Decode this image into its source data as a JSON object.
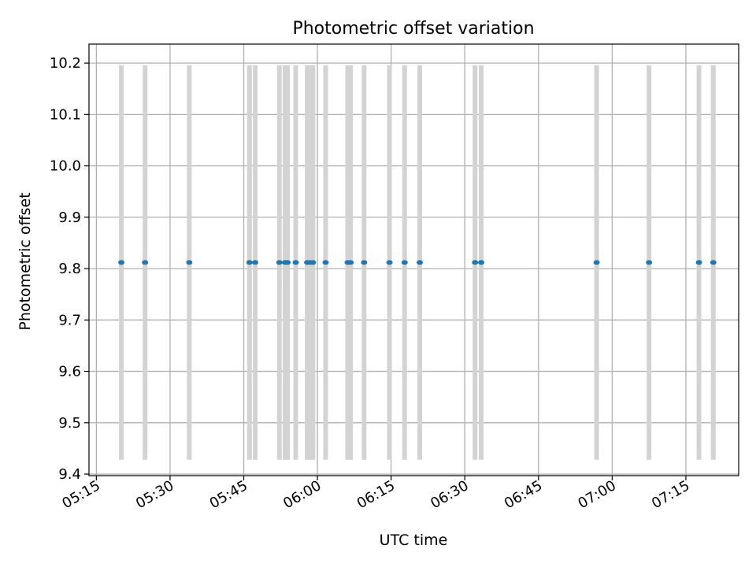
{
  "chart_data": {
    "type": "scatter",
    "title": "Photometric offset variation",
    "xlabel": "UTC time",
    "ylabel": "Photometric offset",
    "xlim": [
      "05:13:30",
      "07:25:45"
    ],
    "ylim": [
      9.397,
      10.237
    ],
    "x_ticks": [
      "05:15",
      "05:30",
      "05:45",
      "06:00",
      "06:15",
      "06:30",
      "06:45",
      "07:00",
      "07:15"
    ],
    "y_ticks": [
      "9.4",
      "9.5",
      "9.6",
      "9.7",
      "9.8",
      "9.9",
      "10.0",
      "10.1",
      "10.2"
    ],
    "grid": true,
    "point_color": "#1f77b4",
    "error_bar_color": "#d3d3d3",
    "points": [
      {
        "x": "05:20:05",
        "y": 9.812,
        "ylow": 9.428,
        "yhigh": 10.196
      },
      {
        "x": "05:24:55",
        "y": 9.812,
        "ylow": 9.428,
        "yhigh": 10.196
      },
      {
        "x": "05:33:55",
        "y": 9.812,
        "ylow": 9.428,
        "yhigh": 10.196
      },
      {
        "x": "05:46:10",
        "y": 9.812,
        "ylow": 9.428,
        "yhigh": 10.196
      },
      {
        "x": "05:47:20",
        "y": 9.812,
        "ylow": 9.428,
        "yhigh": 10.196
      },
      {
        "x": "05:52:15",
        "y": 9.812,
        "ylow": 9.428,
        "yhigh": 10.196
      },
      {
        "x": "05:53:25",
        "y": 9.812,
        "ylow": 9.428,
        "yhigh": 10.196
      },
      {
        "x": "05:53:55",
        "y": 9.812,
        "ylow": 9.428,
        "yhigh": 10.196
      },
      {
        "x": "05:55:35",
        "y": 9.812,
        "ylow": 9.428,
        "yhigh": 10.196
      },
      {
        "x": "05:57:55",
        "y": 9.812,
        "ylow": 9.428,
        "yhigh": 10.196
      },
      {
        "x": "05:58:30",
        "y": 9.812,
        "ylow": 9.428,
        "yhigh": 10.196
      },
      {
        "x": "05:59:05",
        "y": 9.812,
        "ylow": 9.428,
        "yhigh": 10.196
      },
      {
        "x": "06:01:40",
        "y": 9.812,
        "ylow": 9.428,
        "yhigh": 10.196
      },
      {
        "x": "06:06:10",
        "y": 9.812,
        "ylow": 9.428,
        "yhigh": 10.196
      },
      {
        "x": "06:06:45",
        "y": 9.812,
        "ylow": 9.428,
        "yhigh": 10.196
      },
      {
        "x": "06:09:30",
        "y": 9.812,
        "ylow": 9.428,
        "yhigh": 10.196
      },
      {
        "x": "06:14:40",
        "y": 9.812,
        "ylow": 9.428,
        "yhigh": 10.196
      },
      {
        "x": "06:17:45",
        "y": 9.812,
        "ylow": 9.428,
        "yhigh": 10.196
      },
      {
        "x": "06:20:50",
        "y": 9.812,
        "ylow": 9.428,
        "yhigh": 10.196
      },
      {
        "x": "06:32:05",
        "y": 9.812,
        "ylow": 9.428,
        "yhigh": 10.196
      },
      {
        "x": "06:33:20",
        "y": 9.812,
        "ylow": 9.428,
        "yhigh": 10.196
      },
      {
        "x": "06:56:50",
        "y": 9.812,
        "ylow": 9.428,
        "yhigh": 10.196
      },
      {
        "x": "07:07:30",
        "y": 9.812,
        "ylow": 9.428,
        "yhigh": 10.196
      },
      {
        "x": "07:17:40",
        "y": 9.812,
        "ylow": 9.428,
        "yhigh": 10.196
      },
      {
        "x": "07:20:35",
        "y": 9.812,
        "ylow": 9.428,
        "yhigh": 10.196
      }
    ]
  }
}
